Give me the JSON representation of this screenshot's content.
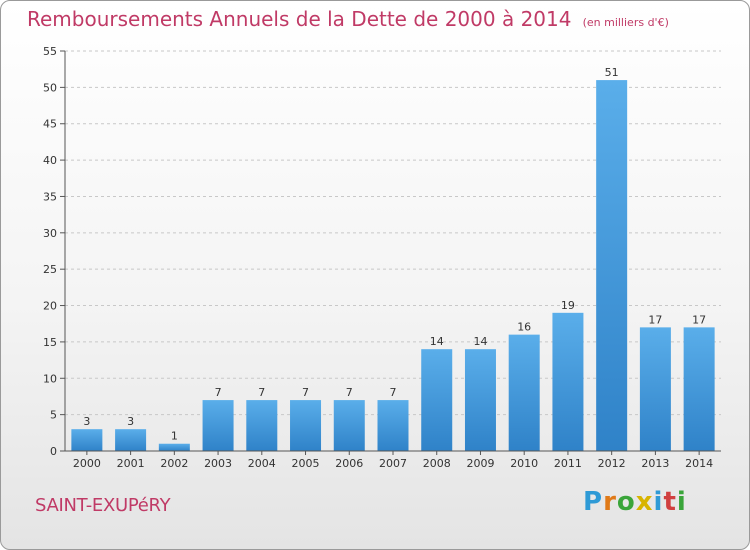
{
  "title": "Remboursements Annuels de la Dette de 2000 à 2014",
  "unit_note": "(en milliers d'€)",
  "commune": "SAINT-EXUPéRY",
  "brand": {
    "letters": [
      "P",
      "r",
      "o",
      "x",
      "i",
      "t",
      "i"
    ],
    "colors": [
      "#2e9ad6",
      "#e07a18",
      "#3aa53a",
      "#d8b400",
      "#2e9ad6",
      "#d04040",
      "#3aa53a"
    ]
  },
  "chart_data": {
    "type": "bar",
    "title": "Remboursements Annuels de la Dette de 2000 à 2014",
    "categories": [
      "2000",
      "2001",
      "2002",
      "2003",
      "2004",
      "2005",
      "2006",
      "2007",
      "2008",
      "2009",
      "2010",
      "2011",
      "2012",
      "2013",
      "2014"
    ],
    "values": [
      3,
      3,
      1,
      7,
      7,
      7,
      7,
      7,
      14,
      14,
      16,
      19,
      51,
      17,
      17
    ],
    "data_labels": [
      "3",
      "3",
      "1",
      "7",
      "7",
      "7",
      "7",
      "7",
      "14",
      "14",
      "16",
      "19",
      "51",
      "17",
      "17"
    ],
    "ylim": [
      0,
      55
    ],
    "yticks": [
      0,
      5,
      10,
      15,
      20,
      25,
      30,
      35,
      40,
      45,
      50,
      55
    ],
    "grid": true,
    "bar_color": "#3a8fd8"
  }
}
